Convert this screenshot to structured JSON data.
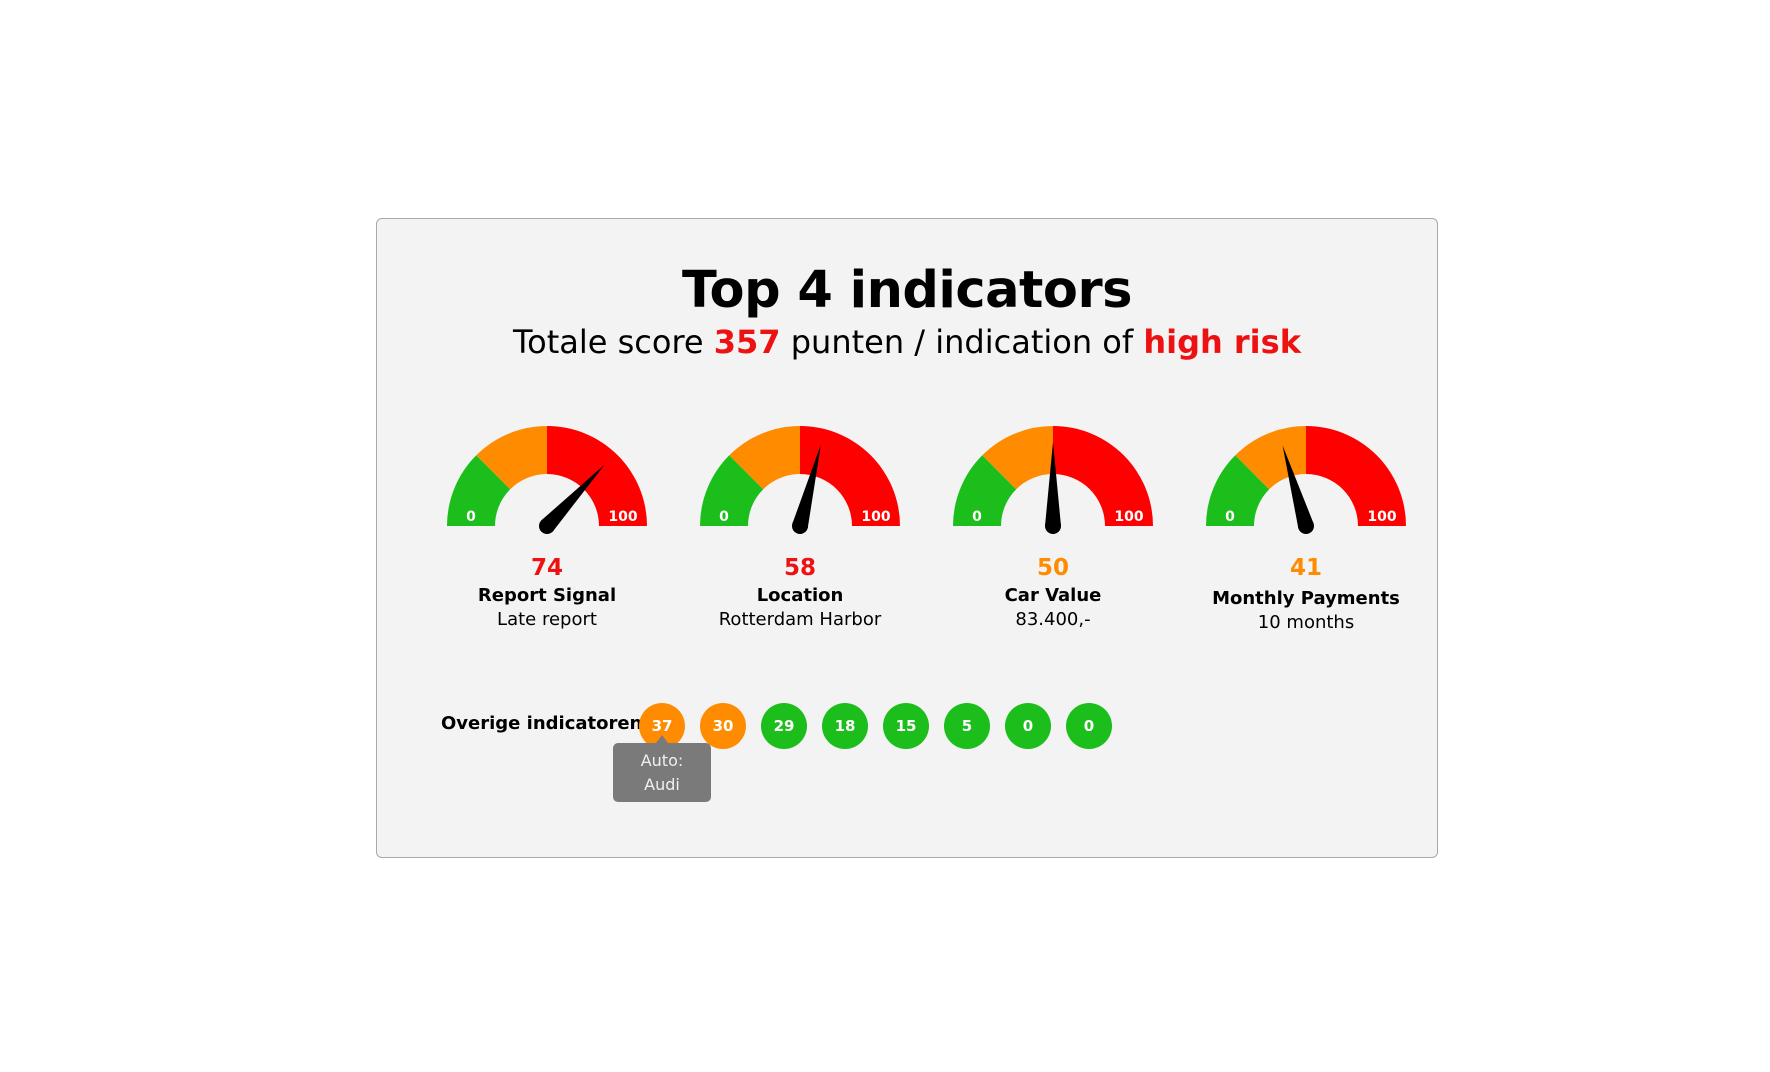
{
  "header": {
    "title": "Top 4 indicators",
    "subtitle_prefix": "Totale score ",
    "total_score": "357",
    "subtitle_middle": " punten / indication of ",
    "risk_level": "high risk"
  },
  "gauge_scale": {
    "min_label": "0",
    "max_label": "100",
    "min": 0,
    "max": 100
  },
  "colors": {
    "green": "#1cbe1c",
    "orange": "#ff8c00",
    "red": "#fe0000",
    "needle": "#000000",
    "risk_text": "#ee1111",
    "tooltip_bg": "#7a7a7a"
  },
  "gauges": [
    {
      "value": 74,
      "value_label": "74",
      "value_color": "#ee1111",
      "label": "Report Signal",
      "sub": "Late report"
    },
    {
      "value": 58,
      "value_label": "58",
      "value_color": "#ee1111",
      "label": "Location",
      "sub": "Rotterdam Harbor"
    },
    {
      "value": 50,
      "value_label": "50",
      "value_color": "#ff8c00",
      "label": "Car Value",
      "sub": "83.400,-"
    },
    {
      "value": 41,
      "value_label": "41",
      "value_color": "#ff8c00",
      "label": "Monthly Payments",
      "sub": "10 months"
    }
  ],
  "others": {
    "label": "Overige indicatoren:",
    "items": [
      {
        "value": "37",
        "color": "#ff8c00"
      },
      {
        "value": "30",
        "color": "#ff8c00"
      },
      {
        "value": "29",
        "color": "#1cbe1c"
      },
      {
        "value": "18",
        "color": "#1cbe1c"
      },
      {
        "value": "15",
        "color": "#1cbe1c"
      },
      {
        "value": "5",
        "color": "#1cbe1c"
      },
      {
        "value": "0",
        "color": "#1cbe1c"
      },
      {
        "value": "0",
        "color": "#1cbe1c"
      }
    ],
    "tooltip": {
      "line1": "Auto:",
      "line2": "Audi"
    }
  }
}
